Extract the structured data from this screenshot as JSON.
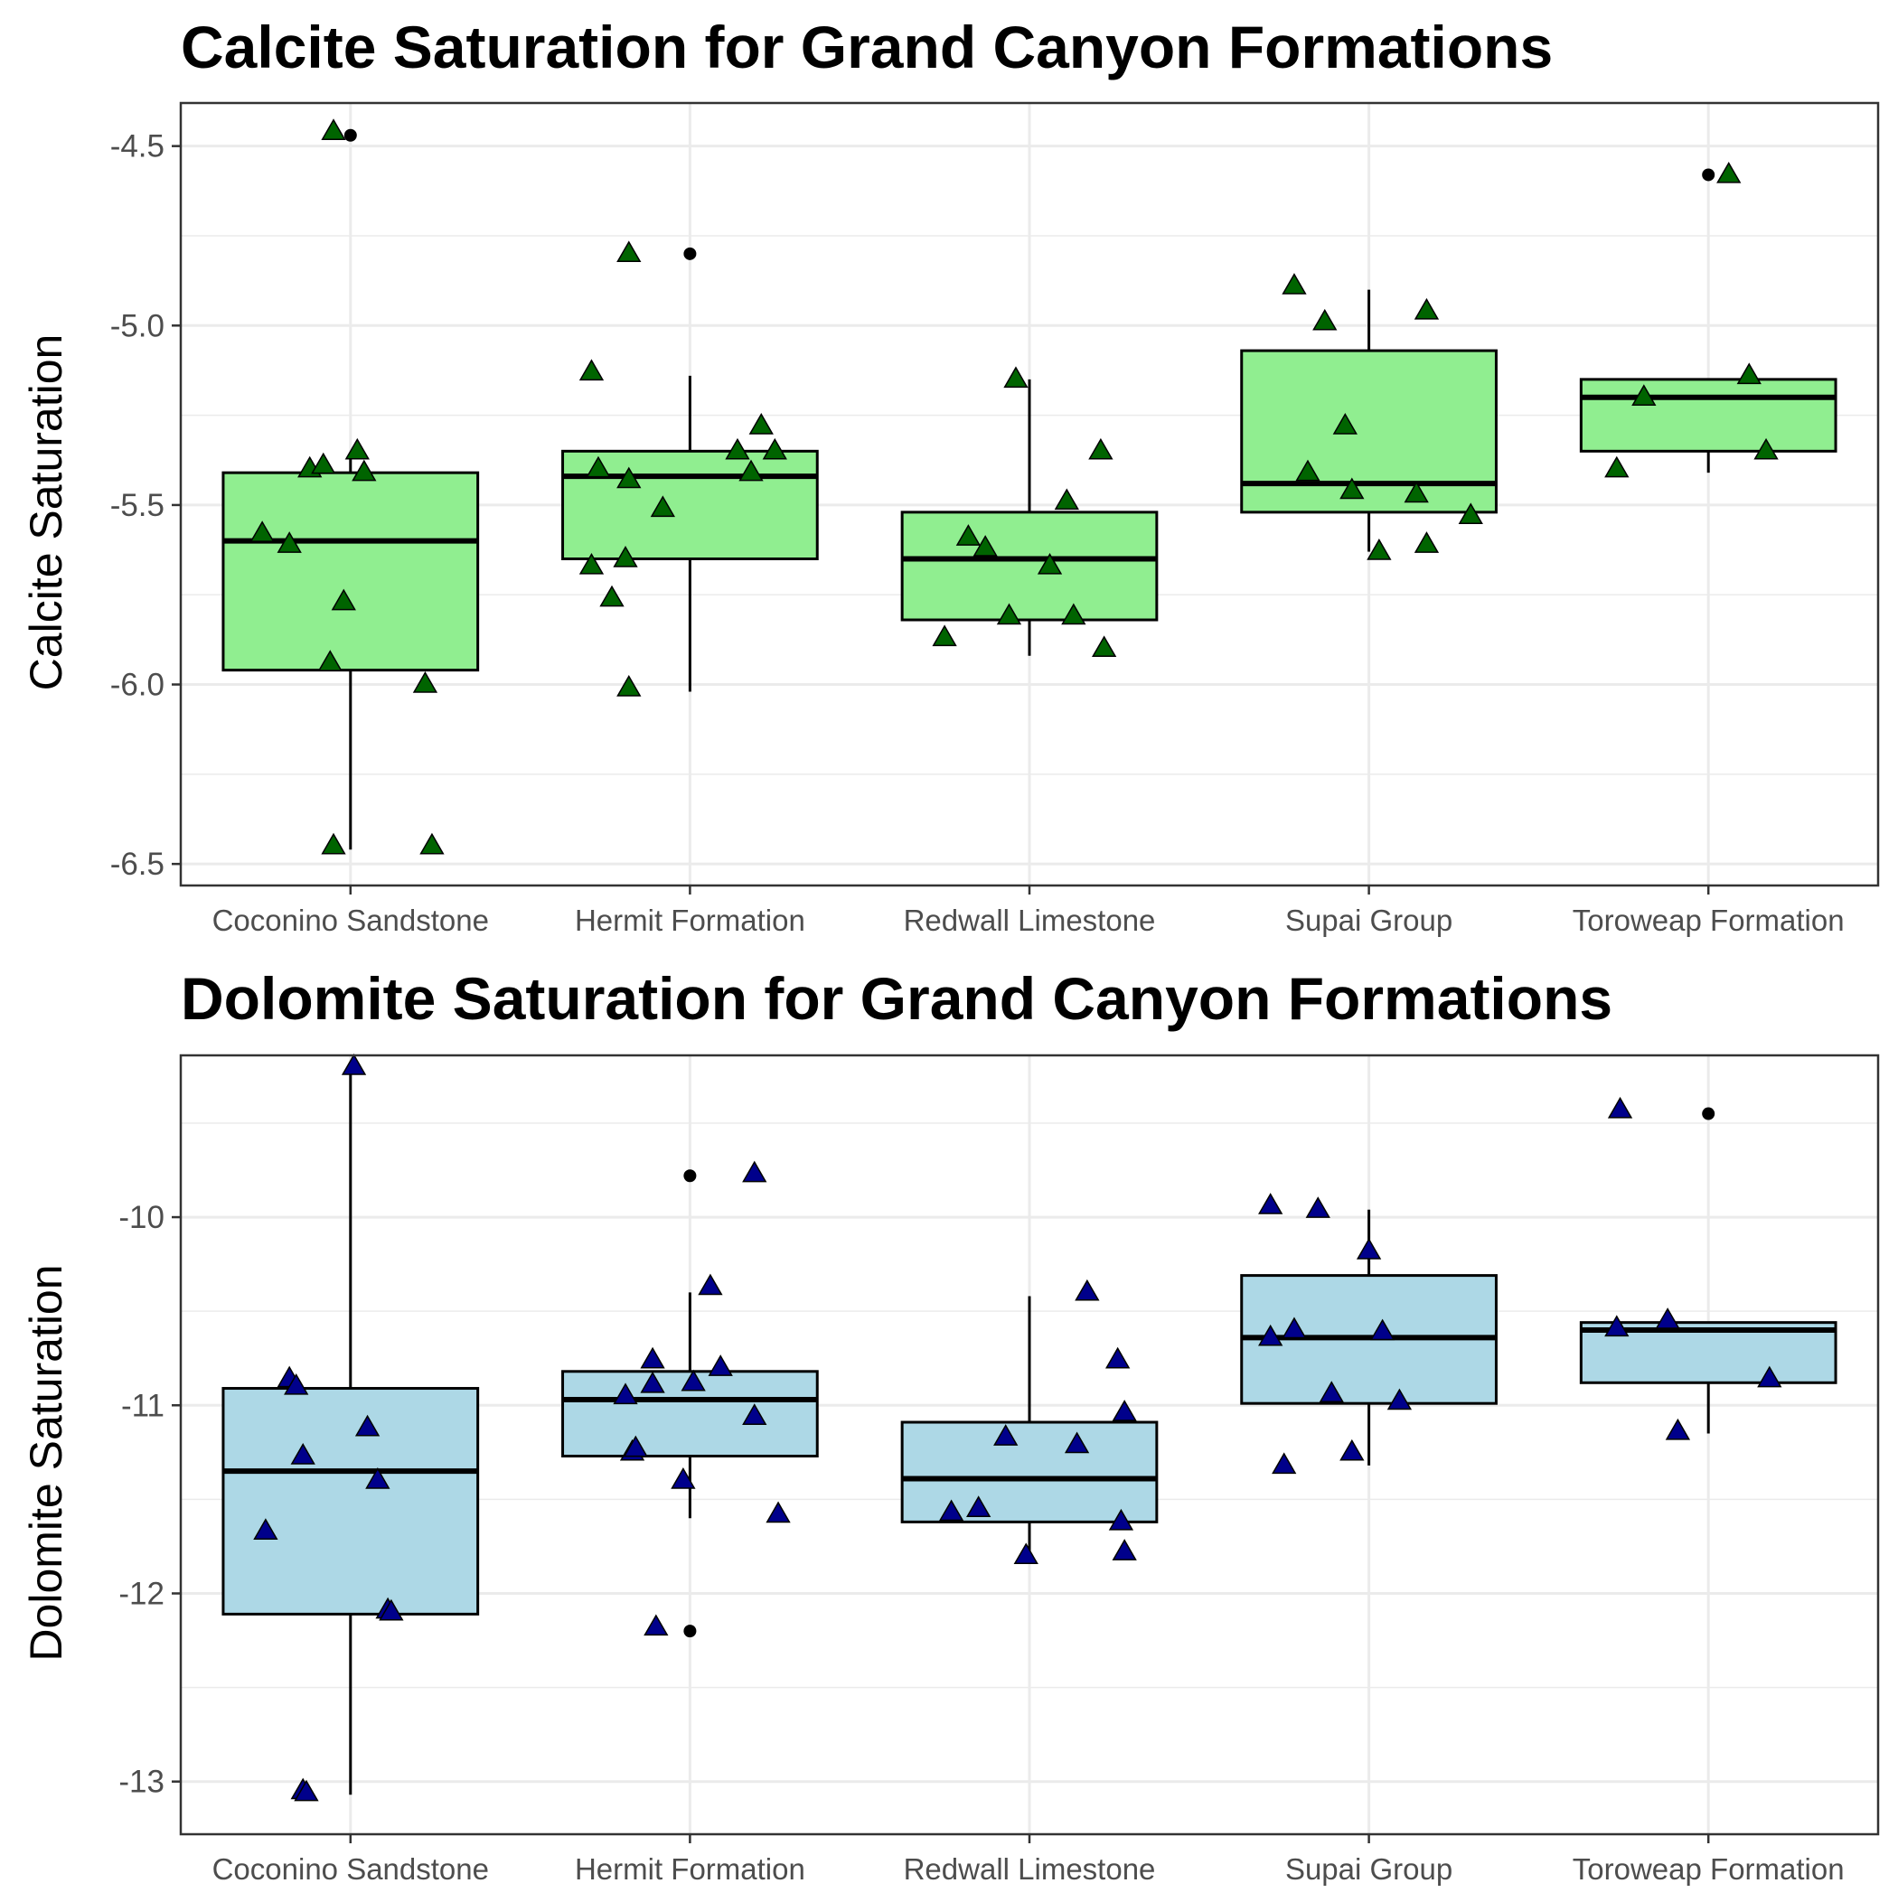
{
  "chart_data": [
    {
      "type": "box",
      "title": "Calcite Saturation for Grand Canyon Formations",
      "xlabel": "",
      "ylabel": "Calcite Saturation",
      "ylim": [
        -6.56,
        -4.38
      ],
      "yticks": [
        -6.5,
        -6.0,
        -5.5,
        -5.0,
        -4.5
      ],
      "ytick_labels": [
        "-6.5",
        "-6.0",
        "-5.5",
        "-5.0",
        "-4.5"
      ],
      "grid": true,
      "categories": [
        "Coconino Sandstone",
        "Hermit Formation",
        "Redwall Limestone",
        "Supai Group",
        "Toroweap Formation"
      ],
      "box_fill": "#90ee90",
      "point_fill": "#006400",
      "point_shape": "triangle",
      "boxes": [
        {
          "category": "Coconino Sandstone",
          "q1": -5.96,
          "median": -5.6,
          "q3": -5.41,
          "whisker_low": -6.46,
          "whisker_high": -5.36,
          "outliers": [
            -4.47
          ]
        },
        {
          "category": "Hermit Formation",
          "q1": -5.65,
          "median": -5.42,
          "q3": -5.35,
          "whisker_low": -6.02,
          "whisker_high": -5.14,
          "outliers": [
            -4.8
          ]
        },
        {
          "category": "Redwall Limestone",
          "q1": -5.82,
          "median": -5.65,
          "q3": -5.52,
          "whisker_low": -5.92,
          "whisker_high": -5.15,
          "outliers": []
        },
        {
          "category": "Supai Group",
          "q1": -5.52,
          "median": -5.44,
          "q3": -5.07,
          "whisker_low": -5.63,
          "whisker_high": -4.9,
          "outliers": []
        },
        {
          "category": "Toroweap Formation",
          "q1": -5.35,
          "median": -5.2,
          "q3": -5.15,
          "whisker_low": -5.41,
          "whisker_high": -5.15,
          "outliers": [
            -4.58
          ]
        }
      ],
      "points": [
        {
          "category": "Coconino Sandstone",
          "offset": -0.26,
          "y": -5.58
        },
        {
          "category": "Coconino Sandstone",
          "offset": -0.18,
          "y": -5.61
        },
        {
          "category": "Coconino Sandstone",
          "offset": -0.12,
          "y": -5.4
        },
        {
          "category": "Coconino Sandstone",
          "offset": -0.08,
          "y": -5.39
        },
        {
          "category": "Coconino Sandstone",
          "offset": -0.05,
          "y": -4.46
        },
        {
          "category": "Coconino Sandstone",
          "offset": -0.06,
          "y": -5.94
        },
        {
          "category": "Coconino Sandstone",
          "offset": -0.05,
          "y": -6.45
        },
        {
          "category": "Coconino Sandstone",
          "offset": -0.02,
          "y": -5.77
        },
        {
          "category": "Coconino Sandstone",
          "offset": 0.02,
          "y": -5.35
        },
        {
          "category": "Coconino Sandstone",
          "offset": 0.04,
          "y": -5.41
        },
        {
          "category": "Coconino Sandstone",
          "offset": 0.22,
          "y": -6.0
        },
        {
          "category": "Coconino Sandstone",
          "offset": 0.24,
          "y": -6.45
        },
        {
          "category": "Hermit Formation",
          "offset": -0.29,
          "y": -5.67
        },
        {
          "category": "Hermit Formation",
          "offset": -0.29,
          "y": -5.13
        },
        {
          "category": "Hermit Formation",
          "offset": -0.27,
          "y": -5.4
        },
        {
          "category": "Hermit Formation",
          "offset": -0.23,
          "y": -5.76
        },
        {
          "category": "Hermit Formation",
          "offset": -0.19,
          "y": -5.65
        },
        {
          "category": "Hermit Formation",
          "offset": -0.18,
          "y": -5.43
        },
        {
          "category": "Hermit Formation",
          "offset": -0.18,
          "y": -4.8
        },
        {
          "category": "Hermit Formation",
          "offset": -0.18,
          "y": -6.01
        },
        {
          "category": "Hermit Formation",
          "offset": -0.08,
          "y": -5.51
        },
        {
          "category": "Hermit Formation",
          "offset": 0.14,
          "y": -5.35
        },
        {
          "category": "Hermit Formation",
          "offset": 0.18,
          "y": -5.41
        },
        {
          "category": "Hermit Formation",
          "offset": 0.21,
          "y": -5.28
        },
        {
          "category": "Hermit Formation",
          "offset": 0.25,
          "y": -5.35
        },
        {
          "category": "Redwall Limestone",
          "offset": -0.25,
          "y": -5.87
        },
        {
          "category": "Redwall Limestone",
          "offset": -0.18,
          "y": -5.59
        },
        {
          "category": "Redwall Limestone",
          "offset": -0.13,
          "y": -5.62
        },
        {
          "category": "Redwall Limestone",
          "offset": -0.06,
          "y": -5.81
        },
        {
          "category": "Redwall Limestone",
          "offset": -0.04,
          "y": -5.15
        },
        {
          "category": "Redwall Limestone",
          "offset": 0.06,
          "y": -5.67
        },
        {
          "category": "Redwall Limestone",
          "offset": 0.11,
          "y": -5.49
        },
        {
          "category": "Redwall Limestone",
          "offset": 0.13,
          "y": -5.81
        },
        {
          "category": "Redwall Limestone",
          "offset": 0.21,
          "y": -5.35
        },
        {
          "category": "Redwall Limestone",
          "offset": 0.22,
          "y": -5.9
        },
        {
          "category": "Supai Group",
          "offset": -0.22,
          "y": -4.89
        },
        {
          "category": "Supai Group",
          "offset": -0.18,
          "y": -5.41
        },
        {
          "category": "Supai Group",
          "offset": -0.13,
          "y": -4.99
        },
        {
          "category": "Supai Group",
          "offset": -0.07,
          "y": -5.28
        },
        {
          "category": "Supai Group",
          "offset": -0.05,
          "y": -5.46
        },
        {
          "category": "Supai Group",
          "offset": 0.03,
          "y": -5.63
        },
        {
          "category": "Supai Group",
          "offset": 0.14,
          "y": -5.47
        },
        {
          "category": "Supai Group",
          "offset": 0.17,
          "y": -5.61
        },
        {
          "category": "Supai Group",
          "offset": 0.17,
          "y": -4.96
        },
        {
          "category": "Supai Group",
          "offset": 0.3,
          "y": -5.53
        },
        {
          "category": "Toroweap Formation",
          "offset": -0.27,
          "y": -5.4
        },
        {
          "category": "Toroweap Formation",
          "offset": -0.19,
          "y": -5.2
        },
        {
          "category": "Toroweap Formation",
          "offset": 0.06,
          "y": -4.58
        },
        {
          "category": "Toroweap Formation",
          "offset": 0.12,
          "y": -5.14
        },
        {
          "category": "Toroweap Formation",
          "offset": 0.17,
          "y": -5.35
        }
      ]
    },
    {
      "type": "box",
      "title": "Dolomite Saturation for Grand Canyon Formations",
      "xlabel": "",
      "ylabel": "Dolomite Saturation",
      "ylim": [
        -13.28,
        -9.14
      ],
      "yticks": [
        -13,
        -12,
        -11,
        -10
      ],
      "ytick_labels": [
        "-13",
        "-12",
        "-11",
        "-10"
      ],
      "grid": true,
      "categories": [
        "Coconino Sandstone",
        "Hermit Formation",
        "Redwall Limestone",
        "Supai Group",
        "Toroweap Formation"
      ],
      "box_fill": "#add8e6",
      "point_fill": "#00008b",
      "point_shape": "triangle",
      "boxes": [
        {
          "category": "Coconino Sandstone",
          "q1": -12.11,
          "median": -11.35,
          "q3": -10.91,
          "whisker_low": -13.07,
          "whisker_high": -9.22,
          "outliers": []
        },
        {
          "category": "Hermit Formation",
          "q1": -11.27,
          "median": -10.97,
          "q3": -10.82,
          "whisker_low": -11.6,
          "whisker_high": -10.4,
          "outliers": [
            -9.78,
            -12.2
          ]
        },
        {
          "category": "Redwall Limestone",
          "q1": -11.62,
          "median": -11.39,
          "q3": -11.09,
          "whisker_low": -11.8,
          "whisker_high": -10.42,
          "outliers": []
        },
        {
          "category": "Supai Group",
          "q1": -10.99,
          "median": -10.64,
          "q3": -10.31,
          "whisker_low": -11.32,
          "whisker_high": -9.96,
          "outliers": []
        },
        {
          "category": "Toroweap Formation",
          "q1": -10.88,
          "median": -10.6,
          "q3": -10.56,
          "whisker_low": -11.15,
          "whisker_high": -10.56,
          "outliers": [
            -9.45
          ]
        }
      ],
      "points": [
        {
          "category": "Coconino Sandstone",
          "offset": -0.25,
          "y": -11.67
        },
        {
          "category": "Coconino Sandstone",
          "offset": -0.18,
          "y": -10.86
        },
        {
          "category": "Coconino Sandstone",
          "offset": -0.16,
          "y": -10.9
        },
        {
          "category": "Coconino Sandstone",
          "offset": -0.14,
          "y": -11.27
        },
        {
          "category": "Coconino Sandstone",
          "offset": -0.14,
          "y": -13.05
        },
        {
          "category": "Coconino Sandstone",
          "offset": -0.13,
          "y": -13.06
        },
        {
          "category": "Coconino Sandstone",
          "offset": 0.01,
          "y": -9.2
        },
        {
          "category": "Coconino Sandstone",
          "offset": 0.05,
          "y": -11.12
        },
        {
          "category": "Coconino Sandstone",
          "offset": 0.08,
          "y": -11.4
        },
        {
          "category": "Coconino Sandstone",
          "offset": 0.11,
          "y": -12.09
        },
        {
          "category": "Coconino Sandstone",
          "offset": 0.12,
          "y": -12.1
        },
        {
          "category": "Hermit Formation",
          "offset": -0.19,
          "y": -10.95
        },
        {
          "category": "Hermit Formation",
          "offset": -0.17,
          "y": -11.25
        },
        {
          "category": "Hermit Formation",
          "offset": -0.16,
          "y": -11.23
        },
        {
          "category": "Hermit Formation",
          "offset": -0.11,
          "y": -10.76
        },
        {
          "category": "Hermit Formation",
          "offset": -0.11,
          "y": -10.89
        },
        {
          "category": "Hermit Formation",
          "offset": -0.1,
          "y": -12.18
        },
        {
          "category": "Hermit Formation",
          "offset": -0.02,
          "y": -11.4
        },
        {
          "category": "Hermit Formation",
          "offset": 0.01,
          "y": -10.88
        },
        {
          "category": "Hermit Formation",
          "offset": 0.06,
          "y": -10.37
        },
        {
          "category": "Hermit Formation",
          "offset": 0.09,
          "y": -10.8
        },
        {
          "category": "Hermit Formation",
          "offset": 0.19,
          "y": -11.06
        },
        {
          "category": "Hermit Formation",
          "offset": 0.19,
          "y": -9.77
        },
        {
          "category": "Hermit Formation",
          "offset": 0.26,
          "y": -11.58
        },
        {
          "category": "Redwall Limestone",
          "offset": -0.23,
          "y": -11.57
        },
        {
          "category": "Redwall Limestone",
          "offset": -0.15,
          "y": -11.55
        },
        {
          "category": "Redwall Limestone",
          "offset": -0.07,
          "y": -11.17
        },
        {
          "category": "Redwall Limestone",
          "offset": -0.01,
          "y": -11.8
        },
        {
          "category": "Redwall Limestone",
          "offset": 0.14,
          "y": -11.21
        },
        {
          "category": "Redwall Limestone",
          "offset": 0.17,
          "y": -10.4
        },
        {
          "category": "Redwall Limestone",
          "offset": 0.26,
          "y": -10.76
        },
        {
          "category": "Redwall Limestone",
          "offset": 0.27,
          "y": -11.62
        },
        {
          "category": "Redwall Limestone",
          "offset": 0.28,
          "y": -11.04
        },
        {
          "category": "Redwall Limestone",
          "offset": 0.28,
          "y": -11.78
        },
        {
          "category": "Supai Group",
          "offset": -0.29,
          "y": -10.64
        },
        {
          "category": "Supai Group",
          "offset": -0.25,
          "y": -11.32
        },
        {
          "category": "Supai Group",
          "offset": -0.29,
          "y": -9.94
        },
        {
          "category": "Supai Group",
          "offset": -0.22,
          "y": -10.6
        },
        {
          "category": "Supai Group",
          "offset": -0.15,
          "y": -9.96
        },
        {
          "category": "Supai Group",
          "offset": -0.11,
          "y": -10.94
        },
        {
          "category": "Supai Group",
          "offset": -0.05,
          "y": -11.25
        },
        {
          "category": "Supai Group",
          "offset": 0.0,
          "y": -10.18
        },
        {
          "category": "Supai Group",
          "offset": 0.04,
          "y": -10.61
        },
        {
          "category": "Supai Group",
          "offset": 0.09,
          "y": -10.98
        },
        {
          "category": "Toroweap Formation",
          "offset": -0.27,
          "y": -10.59
        },
        {
          "category": "Toroweap Formation",
          "offset": -0.26,
          "y": -9.43
        },
        {
          "category": "Toroweap Formation",
          "offset": -0.12,
          "y": -10.55
        },
        {
          "category": "Toroweap Formation",
          "offset": -0.09,
          "y": -11.14
        },
        {
          "category": "Toroweap Formation",
          "offset": 0.18,
          "y": -10.86
        }
      ]
    }
  ]
}
